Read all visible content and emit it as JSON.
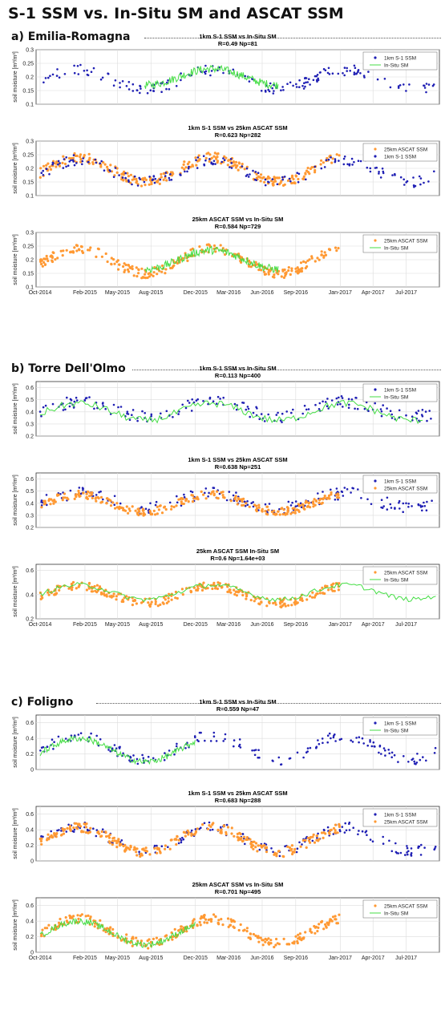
{
  "title": "S-1 SSM vs. In-Situ SM and ASCAT SSM",
  "sections": [
    {
      "label": "a) Emilia-Romagna"
    },
    {
      "label": "b) Torre Dell'Olmo"
    },
    {
      "label": "c) Foligno"
    }
  ],
  "colors": {
    "s1": "#1f1fb4",
    "ascat": "#ff9933",
    "insitu": "#44dd44"
  },
  "chart_data": [
    {
      "type": "scatter",
      "site": "Emilia-Romagna",
      "title": "1km S-1 SSM vs In-Situ SM",
      "subtitle": "R=0.49 Np=81",
      "ylabel": "soil moisture [m³/m³]",
      "ylim": [
        0.1,
        0.3
      ],
      "yticks": [
        0.1,
        0.15,
        0.2,
        0.25,
        0.3
      ],
      "grid": true,
      "legend": "top-right",
      "series": [
        {
          "name": "1km S-1 SSM",
          "kind": "s1",
          "period": [
            "2014-10-01",
            "2017-09-20"
          ],
          "base": 0.19,
          "amp": 0.035,
          "noise": 0.02
        },
        {
          "name": "In-Situ SM",
          "kind": "insitu",
          "period": [
            "2015-07-15",
            "2016-07-15"
          ],
          "base": 0.2,
          "amp": 0.03,
          "noise": 0.015
        }
      ]
    },
    {
      "type": "scatter",
      "site": "Emilia-Romagna",
      "title": "1km S-1 SSM vs 25km ASCAT SSM",
      "subtitle": "R=0.623 Np=282",
      "ylabel": "soil moisture [m³/m³]",
      "ylim": [
        0.1,
        0.3
      ],
      "yticks": [
        0.1,
        0.15,
        0.2,
        0.25,
        0.3
      ],
      "grid": true,
      "legend": "top-right",
      "series": [
        {
          "name": "25km ASCAT SSM",
          "kind": "ascat",
          "period": [
            "2014-10-01",
            "2016-12-31"
          ],
          "base": 0.195,
          "amp": 0.045,
          "noise": 0.018
        },
        {
          "name": "1km S-1 SSM",
          "kind": "s1",
          "period": [
            "2014-10-01",
            "2017-09-20"
          ],
          "base": 0.19,
          "amp": 0.04,
          "noise": 0.02
        }
      ]
    },
    {
      "type": "scatter",
      "site": "Emilia-Romagna",
      "title": "25km ASCAT SSM vs In-Situ SM",
      "subtitle": "R=0.584 Np=729",
      "ylabel": "soil moisture [m³/m³]",
      "ylim": [
        0.1,
        0.3
      ],
      "yticks": [
        0.1,
        0.15,
        0.2,
        0.25,
        0.3
      ],
      "grid": true,
      "legend": "top-right",
      "xticks": [
        "Oct-2014",
        "Feb-2015",
        "May-2015",
        "Aug-2015",
        "Dec-2015",
        "Mar-2016",
        "Jun-2016",
        "Sep-2016",
        "Jan-2017",
        "Apr-2017",
        "Jul-2017"
      ],
      "series": [
        {
          "name": "25km ASCAT SSM",
          "kind": "ascat",
          "period": [
            "2014-10-01",
            "2016-12-31"
          ],
          "base": 0.195,
          "amp": 0.045,
          "noise": 0.018
        },
        {
          "name": "In-Situ SM",
          "kind": "insitu",
          "period": [
            "2015-07-15",
            "2016-07-15"
          ],
          "base": 0.2,
          "amp": 0.035,
          "noise": 0.015
        }
      ]
    },
    {
      "type": "scatter",
      "site": "Torre Dell'Olmo",
      "title": "1km S-1 SSM vs In-Situ SM",
      "subtitle": "R=0.113 Np=400",
      "ylabel": "soil moisture [m³/m³]",
      "ylim": [
        0.2,
        0.65
      ],
      "yticks": [
        0.2,
        0.3,
        0.4,
        0.5,
        0.6
      ],
      "grid": true,
      "legend": "top-right",
      "series": [
        {
          "name": "1km S-1 SSM",
          "kind": "s1",
          "period": [
            "2014-10-01",
            "2017-09-20"
          ],
          "base": 0.42,
          "amp": 0.06,
          "noise": 0.05
        },
        {
          "name": "In-Situ SM",
          "kind": "insitu",
          "period": [
            "2014-10-01",
            "2017-08-15"
          ],
          "base": 0.4,
          "amp": 0.07,
          "noise": 0.03
        }
      ]
    },
    {
      "type": "scatter",
      "site": "Torre Dell'Olmo",
      "title": "1km S-1 SSM vs 25km ASCAT SSM",
      "subtitle": "R=0.638 Np=251",
      "ylabel": "soil moisture [m³/m³]",
      "ylim": [
        0.2,
        0.65
      ],
      "yticks": [
        0.2,
        0.3,
        0.4,
        0.5,
        0.6
      ],
      "grid": true,
      "legend": "top-right",
      "series": [
        {
          "name": "1km S-1 SSM",
          "kind": "s1",
          "period": [
            "2014-10-01",
            "2017-09-20"
          ],
          "base": 0.42,
          "amp": 0.06,
          "noise": 0.05
        },
        {
          "name": "25km ASCAT SSM",
          "kind": "ascat",
          "period": [
            "2014-10-01",
            "2016-12-31"
          ],
          "base": 0.4,
          "amp": 0.07,
          "noise": 0.035
        }
      ]
    },
    {
      "type": "scatter",
      "site": "Torre Dell'Olmo",
      "title": "25km ASCAT SSM In-Situ SM",
      "subtitle": "R=0.6 Np=1.64e+03",
      "ylabel": "soil moisture [m³/m³]",
      "ylim": [
        0.2,
        0.65
      ],
      "yticks": [
        0.2,
        0.4,
        0.6
      ],
      "grid": true,
      "legend": "top-right",
      "xticks": [
        "Oct-2014",
        "Feb-2015",
        "May-2015",
        "Aug-2015",
        "Dec-2015",
        "Mar-2016",
        "Jun-2016",
        "Sep-2016",
        "Jan-2017",
        "Apr-2017",
        "Jul-2017"
      ],
      "series": [
        {
          "name": "25km ASCAT SSM",
          "kind": "ascat",
          "period": [
            "2014-10-01",
            "2016-12-31"
          ],
          "base": 0.4,
          "amp": 0.07,
          "noise": 0.035
        },
        {
          "name": "In-Situ SM",
          "kind": "insitu",
          "period": [
            "2014-10-01",
            "2017-09-20"
          ],
          "base": 0.42,
          "amp": 0.06,
          "noise": 0.02
        }
      ]
    },
    {
      "type": "scatter",
      "site": "Foligno",
      "title": "1km S-1 SSM vs In-Situ SM",
      "subtitle": "R=0.559 Np=47",
      "ylabel": "soil moisture [m³/m³]",
      "ylim": [
        0.0,
        0.7
      ],
      "yticks": [
        0,
        0.2,
        0.4,
        0.6
      ],
      "grid": true,
      "legend": "top-right",
      "series": [
        {
          "name": "1km S-1 SSM",
          "kind": "s1",
          "period": [
            "2014-10-01",
            "2017-09-20"
          ],
          "base": 0.28,
          "amp": 0.15,
          "noise": 0.07
        },
        {
          "name": "In-Situ SM",
          "kind": "insitu",
          "period": [
            "2014-10-01",
            "2015-11-30"
          ],
          "base": 0.25,
          "amp": 0.15,
          "noise": 0.04
        }
      ]
    },
    {
      "type": "scatter",
      "site": "Foligno",
      "title": "1km S-1 SSM vs 25km ASCAT SSM",
      "subtitle": "R=0.683 Np=288",
      "ylabel": "soil moisture [m³/m³]",
      "ylim": [
        0.0,
        0.7
      ],
      "yticks": [
        0,
        0.2,
        0.4,
        0.6
      ],
      "grid": true,
      "legend": "top-right",
      "series": [
        {
          "name": "1km S-1 SSM",
          "kind": "s1",
          "period": [
            "2014-10-01",
            "2017-09-20"
          ],
          "base": 0.28,
          "amp": 0.15,
          "noise": 0.07
        },
        {
          "name": "25km ASCAT SSM",
          "kind": "ascat",
          "period": [
            "2014-10-01",
            "2016-12-31"
          ],
          "base": 0.27,
          "amp": 0.16,
          "noise": 0.06
        }
      ]
    },
    {
      "type": "scatter",
      "site": "Foligno",
      "title": "25km ASCAT SSM vs In-Situ SM",
      "subtitle": "R=0.701 Np=495",
      "ylabel": "soil moisture [m³/m³]",
      "ylim": [
        0.0,
        0.7
      ],
      "yticks": [
        0,
        0.2,
        0.4,
        0.6
      ],
      "grid": true,
      "legend": "top-right",
      "xticks": [
        "Oct-2014",
        "Feb-2015",
        "May-2015",
        "Aug-2015",
        "Dec-2015",
        "Mar-2016",
        "Jun-2016",
        "Sep-2016",
        "Jan-2017",
        "Apr-2017",
        "Jul-2017"
      ],
      "series": [
        {
          "name": "25km ASCAT SSM",
          "kind": "ascat",
          "period": [
            "2014-10-01",
            "2016-12-31"
          ],
          "base": 0.27,
          "amp": 0.16,
          "noise": 0.06
        },
        {
          "name": "In-Situ SM",
          "kind": "insitu",
          "period": [
            "2014-10-01",
            "2015-11-30"
          ],
          "base": 0.25,
          "amp": 0.15,
          "noise": 0.04
        }
      ]
    }
  ]
}
